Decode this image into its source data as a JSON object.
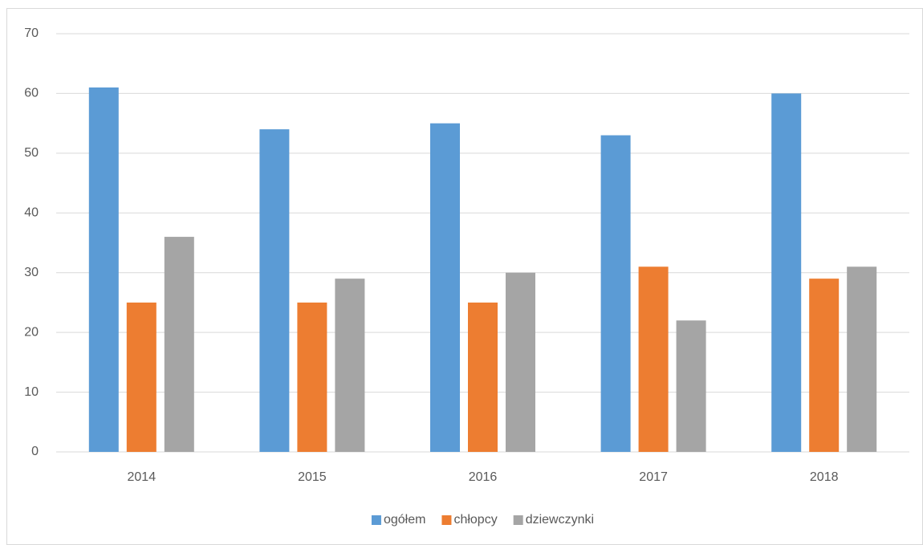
{
  "chart_data": {
    "type": "bar",
    "categories": [
      "2014",
      "2015",
      "2016",
      "2017",
      "2018"
    ],
    "series": [
      {
        "name": "ogółem",
        "color": "#5b9bd5",
        "values": [
          61,
          54,
          55,
          53,
          60
        ]
      },
      {
        "name": "chłopcy",
        "color": "#ed7d31",
        "values": [
          25,
          25,
          25,
          31,
          29
        ]
      },
      {
        "name": "dziewczynki",
        "color": "#a5a5a5",
        "values": [
          36,
          29,
          30,
          22,
          31
        ]
      }
    ],
    "ylim": [
      0,
      70
    ],
    "yticks": [
      0,
      10,
      20,
      30,
      40,
      50,
      60,
      70
    ],
    "grid": true,
    "legend": "bottom"
  }
}
